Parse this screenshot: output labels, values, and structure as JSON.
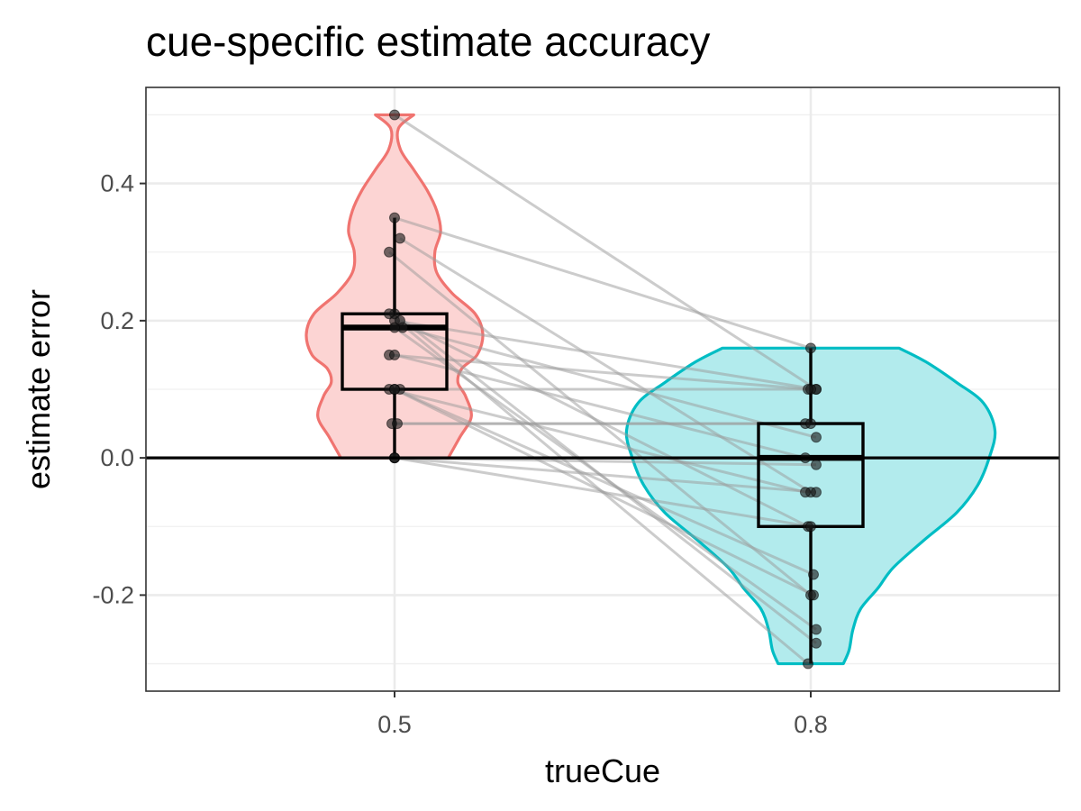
{
  "chart_data": {
    "type": "violin",
    "title": "cue-specific estimate accuracy",
    "xlabel": "trueCue",
    "ylabel": "estimate error",
    "categories": [
      "0.5",
      "0.8"
    ],
    "x_tick_labels": [
      "0.5",
      "0.8"
    ],
    "y_tick_labels": [
      "-0.2",
      "0.0",
      "0.2",
      "0.4"
    ],
    "y_ticks": [
      -0.2,
      0.0,
      0.2,
      0.4
    ],
    "ylim": [
      -0.34,
      0.54
    ],
    "grid": true,
    "legend": "none",
    "reference_line_y": 0.0,
    "colors": {
      "0.5_line": "#f07470",
      "0.5_fill": "#fcd4d3",
      "0.8_line": "#00bdc4",
      "0.8_fill": "#b2ebed",
      "points": "#1a1a1a",
      "paired_lines": "#999999"
    },
    "violins": [
      {
        "group": "0.5",
        "profile": [
          [
            0.0,
            0.28
          ],
          [
            0.03,
            0.34
          ],
          [
            0.06,
            0.4
          ],
          [
            0.09,
            0.37
          ],
          [
            0.11,
            0.33
          ],
          [
            0.13,
            0.35
          ],
          [
            0.15,
            0.43
          ],
          [
            0.18,
            0.46
          ],
          [
            0.21,
            0.42
          ],
          [
            0.24,
            0.3
          ],
          [
            0.27,
            0.22
          ],
          [
            0.3,
            0.21
          ],
          [
            0.33,
            0.24
          ],
          [
            0.36,
            0.22
          ],
          [
            0.39,
            0.17
          ],
          [
            0.42,
            0.1
          ],
          [
            0.45,
            0.03
          ],
          [
            0.48,
            0.02
          ],
          [
            0.5,
            0.1
          ]
        ]
      },
      {
        "group": "0.8",
        "profile": [
          [
            -0.3,
            0.17
          ],
          [
            -0.28,
            0.2
          ],
          [
            -0.25,
            0.22
          ],
          [
            -0.22,
            0.26
          ],
          [
            -0.19,
            0.35
          ],
          [
            -0.16,
            0.43
          ],
          [
            -0.12,
            0.59
          ],
          [
            -0.08,
            0.76
          ],
          [
            -0.04,
            0.87
          ],
          [
            0.0,
            0.93
          ],
          [
            0.04,
            0.96
          ],
          [
            0.08,
            0.9
          ],
          [
            0.11,
            0.76
          ],
          [
            0.14,
            0.6
          ],
          [
            0.16,
            0.46
          ]
        ]
      }
    ],
    "boxes": [
      {
        "group": "0.5",
        "q1": 0.1,
        "median": 0.19,
        "q3": 0.21,
        "whisker_low": 0.0,
        "whisker_high": 0.35
      },
      {
        "group": "0.8",
        "q1": -0.1,
        "median": 0.0,
        "q3": 0.05,
        "whisker_low": -0.3,
        "whisker_high": 0.16
      }
    ],
    "pairs": [
      [
        0.5,
        0.1
      ],
      [
        0.35,
        0.16
      ],
      [
        0.32,
        -0.05
      ],
      [
        0.3,
        -0.2
      ],
      [
        0.21,
        -0.27
      ],
      [
        0.21,
        -0.3
      ],
      [
        0.2,
        0.1
      ],
      [
        0.2,
        -0.1
      ],
      [
        0.19,
        0.03
      ],
      [
        0.19,
        -0.25
      ],
      [
        0.15,
        0.1
      ],
      [
        0.15,
        0.0
      ],
      [
        0.1,
        0.1
      ],
      [
        0.1,
        -0.05
      ],
      [
        0.1,
        -0.17
      ],
      [
        0.1,
        -0.2
      ],
      [
        0.05,
        0.05
      ],
      [
        0.05,
        0.05
      ],
      [
        0.0,
        -0.01
      ],
      [
        0.0,
        -0.1
      ],
      [
        0.0,
        -0.05
      ]
    ],
    "group_a_jitter": [
      0.0,
      0.0,
      0.02,
      -0.02,
      0.0,
      -0.02,
      0.0,
      0.02,
      0.03,
      0.0,
      -0.02,
      0.0,
      0.02,
      -0.02,
      0.0,
      0.0,
      -0.01,
      0.01,
      0.0,
      0.0,
      0.0
    ],
    "group_b_jitter": [
      0.02,
      0.0,
      0.0,
      0.0,
      0.02,
      -0.01,
      0.02,
      -0.01,
      0.02,
      0.02,
      0.0,
      -0.02,
      -0.01,
      -0.02,
      0.01,
      0.01,
      -0.02,
      0.0,
      0.02,
      0.0,
      0.02
    ]
  }
}
